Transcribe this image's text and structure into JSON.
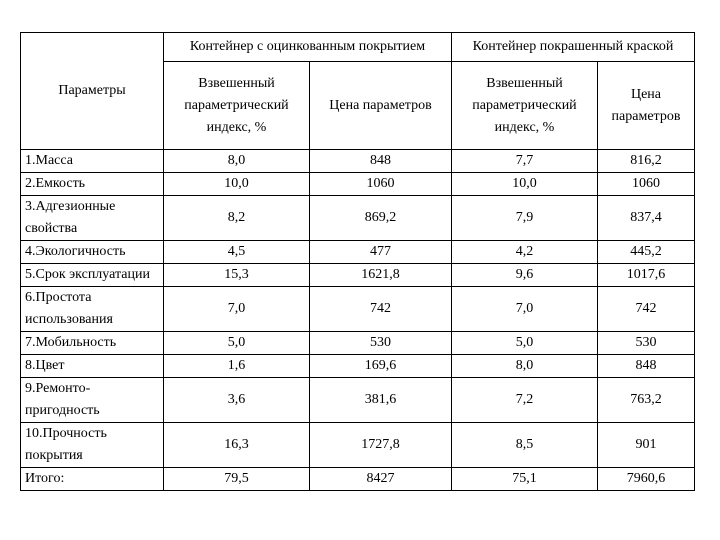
{
  "table": {
    "group_galvanized": "Контейнер с оцинкованным покрытием",
    "group_painted": "Контейнер покрашенный краской",
    "col_params": "Параметры",
    "col_weighted_index": "Взвешенный параметрический индекс, %",
    "col_param_price": "Цена параметров",
    "col_weighted_index_2": "Взвешенный параметрический индекс, %",
    "col_param_price_2": "Цена параметров",
    "rows": [
      {
        "name": "1.Масса",
        "g_index": "8,0",
        "g_price": "848",
        "p_index": "7,7",
        "p_price": "816,2"
      },
      {
        "name": "2.Емкость",
        "g_index": "10,0",
        "g_price": "1060",
        "p_index": "10,0",
        "p_price": "1060"
      },
      {
        "name": "3.Адгезионные свойства",
        "g_index": "8,2",
        "g_price": "869,2",
        "p_index": "7,9",
        "p_price": "837,4"
      },
      {
        "name": "4.Экологичность",
        "g_index": "4,5",
        "g_price": "477",
        "p_index": "4,2",
        "p_price": "445,2"
      },
      {
        "name": "5.Срок эксплуатации",
        "g_index": "15,3",
        "g_price": "1621,8",
        "p_index": "9,6",
        "p_price": "1017,6"
      },
      {
        "name": "6.Простота использования",
        "g_index": "7,0",
        "g_price": "742",
        "p_index": "7,0",
        "p_price": "742"
      },
      {
        "name": "7.Мобильность",
        "g_index": "5,0",
        "g_price": "530",
        "p_index": "5,0",
        "p_price": "530"
      },
      {
        "name": "8.Цвет",
        "g_index": "1,6",
        "g_price": "169,6",
        "p_index": "8,0",
        "p_price": "848"
      },
      {
        "name": "9.Ремонто- пригодность",
        "g_index": "3,6",
        "g_price": "381,6",
        "p_index": "7,2",
        "p_price": "763,2"
      },
      {
        "name": "10.Прочность покрытия",
        "g_index": "16,3",
        "g_price": "1727,8",
        "p_index": "8,5",
        "p_price": "901"
      },
      {
        "name": "Итого:",
        "g_index": "79,5",
        "g_price": "8427",
        "p_index": "75,1",
        "p_price": "7960,6"
      }
    ]
  }
}
